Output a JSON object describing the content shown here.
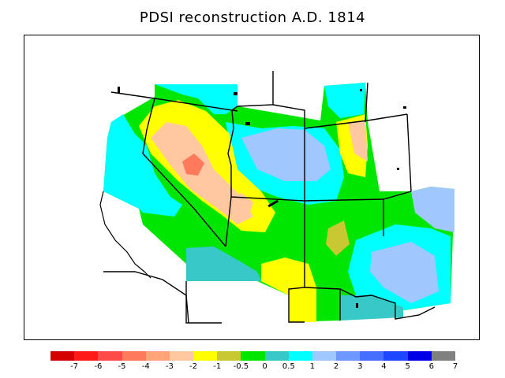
{
  "title": "PDSI reconstruction A.D. 1814",
  "legend": {
    "colors": [
      "#d40000",
      "#ff1a1a",
      "#ff4a4a",
      "#ff7a5a",
      "#ffa478",
      "#ffc8a0",
      "#ffff00",
      "#c8c832",
      "#00e600",
      "#37c8c8",
      "#00ffff",
      "#a0c8ff",
      "#6e96ff",
      "#466eff",
      "#1e46ff",
      "#0000e6",
      "#808080"
    ],
    "labels": [
      "-7",
      "-6",
      "-5",
      "-4",
      "-3",
      "-2",
      "-1",
      "-0.5",
      "0",
      "0.5",
      "1",
      "2",
      "3",
      "4",
      "5",
      "6",
      "7"
    ]
  },
  "regions": [
    {
      "name": "northwest-cyan",
      "class": "1"
    },
    {
      "name": "great-basin-yellow",
      "class": "-2"
    },
    {
      "name": "central-nevada-salmon",
      "class": "-4"
    },
    {
      "name": "wyoming-light-blue",
      "class": "2"
    },
    {
      "name": "utah-salmon",
      "class": "-3"
    },
    {
      "name": "new-mexico-light-blue",
      "class": "2"
    },
    {
      "name": "arizona-teal",
      "class": "0.5"
    },
    {
      "name": "southern-yellow",
      "class": "-1"
    }
  ]
}
